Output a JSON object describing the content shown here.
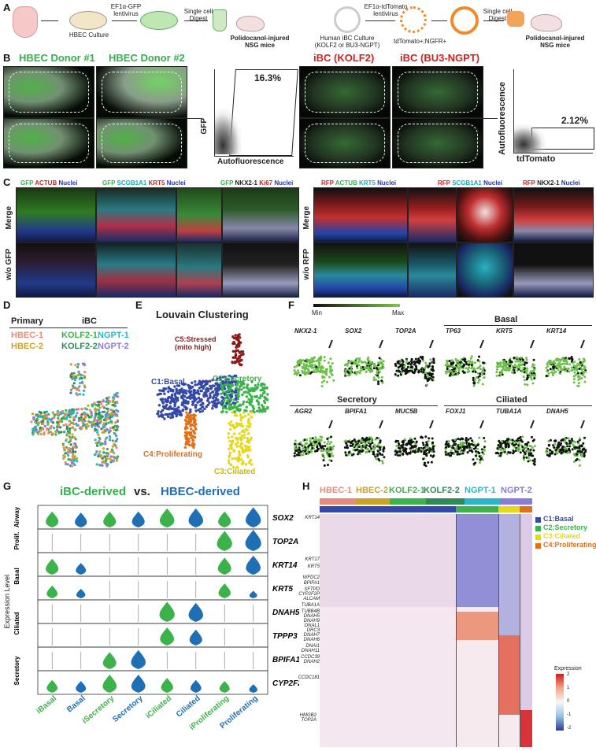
{
  "panel_letters": [
    "A",
    "B",
    "C",
    "D",
    "E",
    "F",
    "G",
    "H"
  ],
  "panelA": {
    "left_steps": [
      "HBEC Culture",
      "EF1α-GFP lentivirus",
      "Single cell Digest",
      "Polidocanol-injured NSG mice"
    ],
    "right_steps": [
      "Human iBC Culture (KOLF2 or BU3-NGPT)",
      "EF1α-tdTomato lentivirus",
      "tdTomato+;NGFR+",
      "Single cell Digest",
      "Polidocanol-injured NSG mice"
    ]
  },
  "panelB": {
    "titles": [
      "HBEC Donor #1",
      "HBEC Donor #2",
      "iBC (KOLF2)",
      "iBC (BU3-NGPT)"
    ],
    "flow_left": {
      "pct": "16.3%",
      "ylabel": "GFP",
      "xlabel": "Autofluorescence"
    },
    "flow_right": {
      "pct": "2.12%",
      "ylabel": "Autofluorescence",
      "xlabel": "tdTomato"
    }
  },
  "panelC": {
    "left_headers": [
      [
        {
          "t": "GFP ",
          "c": "#2fb34a"
        },
        {
          "t": "ACTUB ",
          "c": "#d02020"
        },
        {
          "t": "Nuclei",
          "c": "#2233bb"
        }
      ],
      [
        {
          "t": "GFP ",
          "c": "#2fb34a"
        },
        {
          "t": "SCGB1A1 ",
          "c": "#18a8b8"
        },
        {
          "t": "KRT5 ",
          "c": "#d02020"
        },
        {
          "t": "Nuclei",
          "c": "#2233bb"
        }
      ],
      [
        {
          "t": "GFP ",
          "c": "#2fb34a"
        },
        {
          "t": "NKX2-1 ",
          "c": "#222"
        },
        {
          "t": "Ki67 ",
          "c": "#d02020"
        },
        {
          "t": "Nuclei",
          "c": "#2233bb"
        }
      ]
    ],
    "right_headers": [
      [
        {
          "t": "RFP ",
          "c": "#d02020"
        },
        {
          "t": "ACTUB ",
          "c": "#2fb34a"
        },
        {
          "t": "KRT5 ",
          "c": "#18a8b8"
        },
        {
          "t": "Nuclei",
          "c": "#2233bb"
        }
      ],
      [
        {
          "t": "RFP ",
          "c": "#d02020"
        },
        {
          "t": "SCGB1A1 ",
          "c": "#18a8b8"
        },
        {
          "t": "Nuclei",
          "c": "#2233bb"
        }
      ],
      [
        {
          "t": "RFP ",
          "c": "#d02020"
        },
        {
          "t": "NKX2-1 ",
          "c": "#222"
        },
        {
          "t": "Nuclei",
          "c": "#2233bb"
        }
      ]
    ],
    "row_labels_left": [
      "Merge",
      "w/o GFP"
    ],
    "row_labels_right": [
      "Merge",
      "w/o RFP"
    ]
  },
  "panelD": {
    "primary_label": "Primary",
    "ibc_label": "iBC",
    "samples": [
      {
        "name": "HBEC-1",
        "color": "#e88a7a"
      },
      {
        "name": "HBEC-2",
        "color": "#c9a227"
      },
      {
        "name": "KOLF2-1",
        "color": "#3bb34a"
      },
      {
        "name": "KOLF2-2",
        "color": "#2e8b57"
      },
      {
        "name": "NGPT-1",
        "color": "#28b6c8"
      },
      {
        "name": "NGPT-2",
        "color": "#8c7bd6"
      }
    ]
  },
  "panelE": {
    "title": "Louvain Clustering",
    "clusters": [
      {
        "name": "C5:Stressed (mito high)",
        "color": "#8b1a1a"
      },
      {
        "name": "C1:Basal",
        "color": "#3348a8"
      },
      {
        "name": "C2:Secretory",
        "color": "#3bb34a"
      },
      {
        "name": "C4:Proliferating",
        "color": "#e0701a"
      },
      {
        "name": "C3:Ciliated",
        "color": "#e6d81a"
      }
    ]
  },
  "panelF": {
    "scale_min": "Min",
    "scale_max": "Max",
    "group_basal": "Basal",
    "group_secretory": "Secretory",
    "group_ciliated": "Ciliated",
    "genes_row1": [
      "NKX2-1",
      "SOX2",
      "TOP2A",
      "TP63",
      "KRT5",
      "KRT14"
    ],
    "genes_row2": [
      "AGR2",
      "BPIFA1",
      "MUC5B",
      "FOXJ1",
      "TUBA1A",
      "DNAH5"
    ]
  },
  "panelG": {
    "title_left": "iBC-derived",
    "title_vs": "vs.",
    "title_right": "HBEC-derived",
    "ylabel": "Expression Level",
    "group_labels": [
      "Airway",
      "Prolif.",
      "Basal",
      "Ciliated",
      "Secretory"
    ],
    "genes": [
      "SOX2",
      "TOP2A",
      "KRT14",
      "KRT5",
      "DNAH5",
      "TPPP3",
      "BPIFA1",
      "CYP2F2P"
    ],
    "categories": [
      "iBasal",
      "Basal",
      "iSecretory",
      "Secretory",
      "iCiliated",
      "Ciliated",
      "iProliferating",
      "Proliferating"
    ],
    "ibc_color": "#3bb34a",
    "hbec_color": "#1f6fb5",
    "violin_heights": [
      [
        0.75,
        0.7,
        0.75,
        0.75,
        0.9,
        0.9,
        0.75,
        0.95
      ],
      [
        0.0,
        0.0,
        0.0,
        0.0,
        0.0,
        0.0,
        0.95,
        1.0
      ],
      [
        0.75,
        0.55,
        0.0,
        0.0,
        0.0,
        0.0,
        0.8,
        0.9
      ],
      [
        0.6,
        0.45,
        0.0,
        0.0,
        0.0,
        0.0,
        0.7,
        0.35
      ],
      [
        0.0,
        0.0,
        0.0,
        0.0,
        0.95,
        0.9,
        0.0,
        0.0
      ],
      [
        0.0,
        0.0,
        0.0,
        0.0,
        0.85,
        0.75,
        0.0,
        0.0
      ],
      [
        0.0,
        0.0,
        0.8,
        0.9,
        0.0,
        0.0,
        0.0,
        0.0
      ],
      [
        0.6,
        0.55,
        0.85,
        0.85,
        0.7,
        0.6,
        0.55,
        0.4
      ]
    ]
  },
  "panelH": {
    "samples": [
      {
        "name": "HBEC-1",
        "color": "#e88a7a"
      },
      {
        "name": "HBEC-2",
        "color": "#c9a227"
      },
      {
        "name": "KOLF2-1",
        "color": "#3bb34a"
      },
      {
        "name": "KOLF2-2",
        "color": "#2e8b57"
      },
      {
        "name": "NGPT-1",
        "color": "#28b6c8"
      },
      {
        "name": "NGPT-2",
        "color": "#8c7bd6"
      }
    ],
    "legend": [
      {
        "name": "C1:Basal",
        "color": "#3348a8"
      },
      {
        "name": "C2:Secretory",
        "color": "#3bb34a"
      },
      {
        "name": "C3:Ciliated",
        "color": "#e6d81a"
      },
      {
        "name": "C4:Proliferating",
        "color": "#e0701a"
      }
    ],
    "gene_labels": [
      "KRT14",
      "KRT17",
      "KRT5",
      "WFDC2",
      "BPIFA1",
      "SFTPD",
      "CYP2F2P",
      "ALCAM",
      "TUBA1A",
      "TUBB4B",
      "DNAH5",
      "DNAH9",
      "DNAL1",
      "DRC3",
      "DNAH7",
      "DNAH6",
      "DNAI1",
      "DNAH11",
      "CCDC39",
      "DNAH2",
      "CCDC181",
      "HMGB2",
      "TOP2A"
    ],
    "colorbar_title": "Expression",
    "colorbar_ticks": [
      "2",
      "1",
      "0",
      "-1",
      "-2"
    ]
  }
}
